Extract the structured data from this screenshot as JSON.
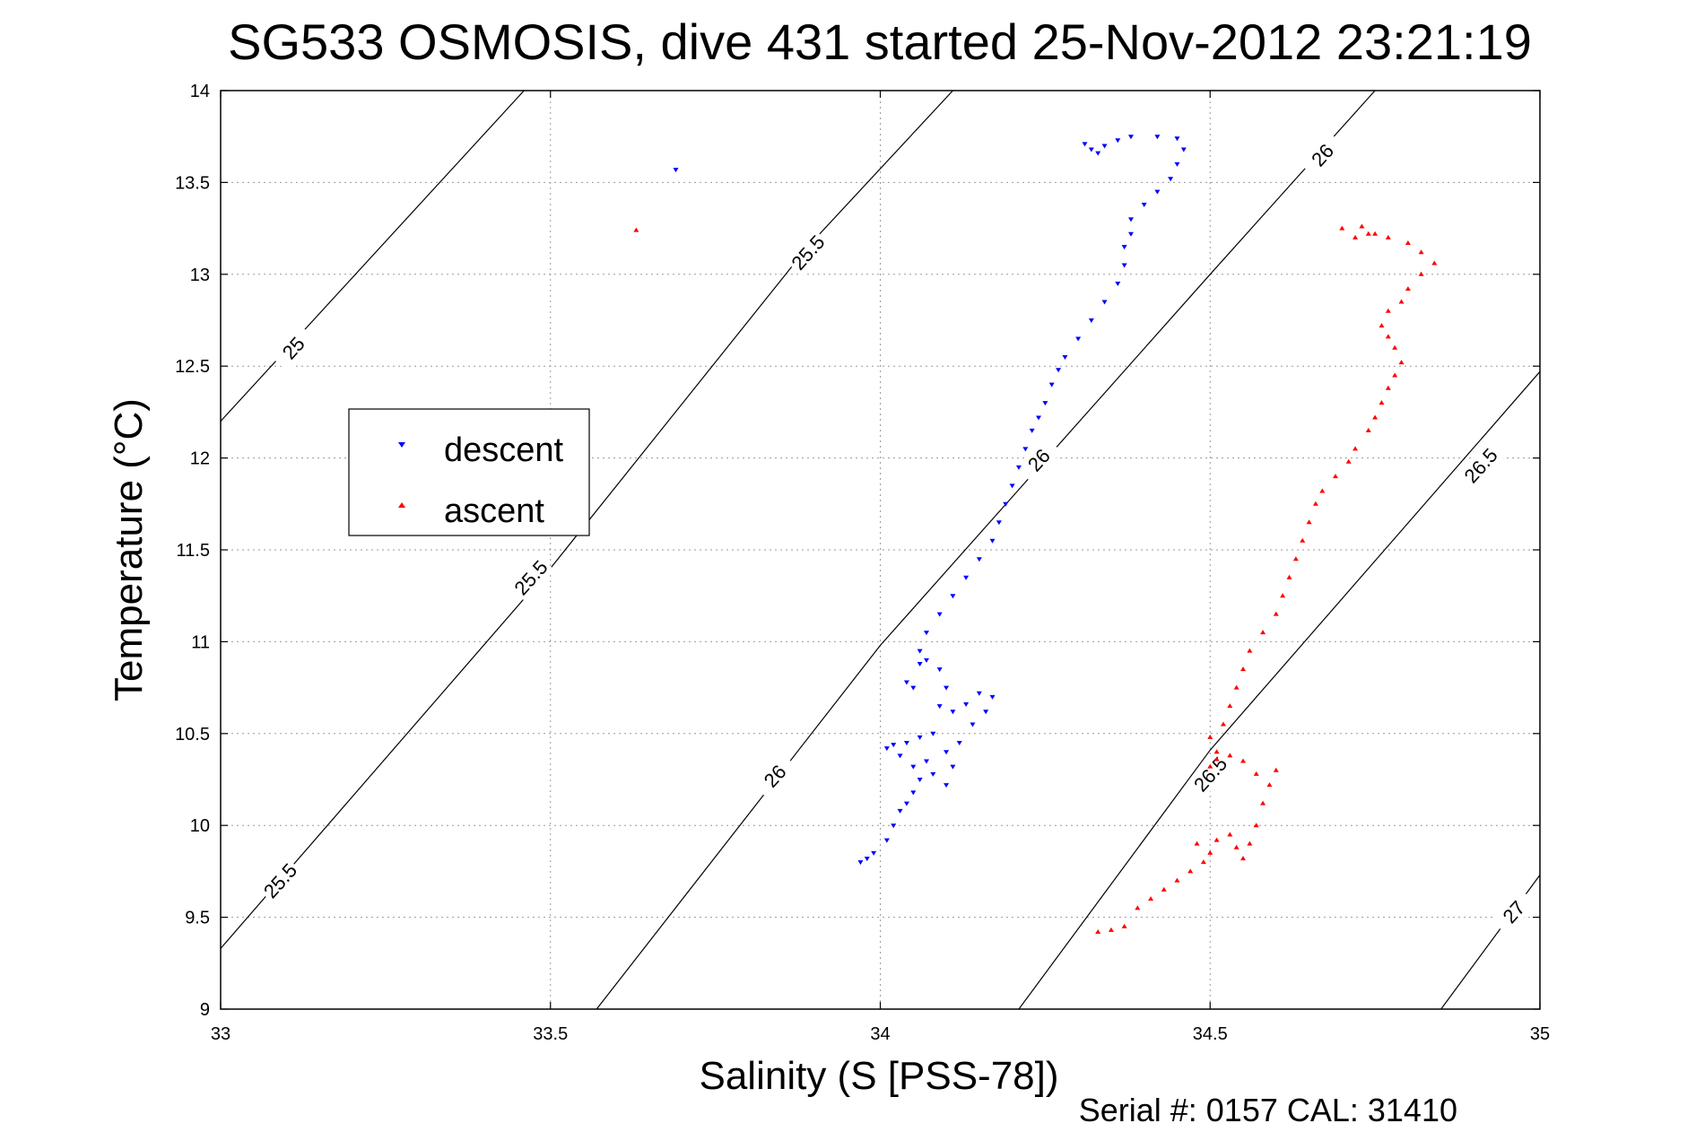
{
  "chart_data": {
    "type": "scatter",
    "title": "SG533 OSMOSIS, dive 431 started 25-Nov-2012 23:21:19",
    "xlabel": "Salinity (S [PSS-78])",
    "ylabel": "Temperature (°C)",
    "xlim": [
      33,
      35
    ],
    "ylim": [
      9,
      14
    ],
    "xticks": [
      "33",
      "33.5",
      "34",
      "34.5",
      "35"
    ],
    "yticks": [
      "9",
      "9.5",
      "10",
      "10.5",
      "11",
      "11.5",
      "12",
      "12.5",
      "13",
      "13.5",
      "14"
    ],
    "grid": true,
    "legend_position": "left-middle",
    "footer": "Serial #: 0157  CAL: 31410",
    "contours": [
      {
        "label": "25",
        "points": [
          [
            33.0,
            12.2
          ],
          [
            33.46,
            14.0
          ]
        ]
      },
      {
        "label": "25.5",
        "points": [
          [
            33.0,
            9.33
          ],
          [
            33.5,
            11.4
          ],
          [
            33.89,
            13.15
          ],
          [
            34.11,
            14.0
          ]
        ]
      },
      {
        "label": "26",
        "points": [
          [
            33.57,
            9.0
          ],
          [
            34.0,
            10.98
          ],
          [
            34.5,
            13.0
          ],
          [
            34.75,
            14.0
          ]
        ]
      },
      {
        "label": "26.5",
        "points": [
          [
            34.21,
            9.0
          ],
          [
            34.5,
            10.41
          ],
          [
            35.0,
            12.47
          ]
        ]
      },
      {
        "label": "27",
        "points": [
          [
            34.85,
            9.0
          ],
          [
            35.0,
            9.73
          ]
        ]
      }
    ],
    "contour_labels": [
      {
        "text": "25",
        "x": 33.11,
        "y": 12.6,
        "angle": -48
      },
      {
        "text": "25.5",
        "x": 33.09,
        "y": 9.7,
        "angle": -48
      },
      {
        "text": "25.5",
        "x": 33.47,
        "y": 11.35,
        "angle": -48
      },
      {
        "text": "25.5",
        "x": 33.89,
        "y": 13.12,
        "angle": -48
      },
      {
        "text": "26",
        "x": 33.84,
        "y": 10.27,
        "angle": -48
      },
      {
        "text": "26",
        "x": 34.24,
        "y": 11.99,
        "angle": -48
      },
      {
        "text": "26",
        "x": 34.67,
        "y": 13.65,
        "angle": -48
      },
      {
        "text": "26.5",
        "x": 34.5,
        "y": 10.28,
        "angle": -48
      },
      {
        "text": "26.5",
        "x": 34.91,
        "y": 11.96,
        "angle": -48
      },
      {
        "text": "27",
        "x": 34.96,
        "y": 9.53,
        "angle": -48
      }
    ],
    "series": [
      {
        "name": "descent",
        "color": "#0000ff",
        "marker": "triangle-down",
        "points": [
          [
            33.97,
            9.8
          ],
          [
            33.98,
            9.82
          ],
          [
            33.99,
            9.85
          ],
          [
            34.01,
            9.92
          ],
          [
            34.02,
            10.0
          ],
          [
            34.03,
            10.08
          ],
          [
            34.04,
            10.12
          ],
          [
            34.05,
            10.18
          ],
          [
            34.06,
            10.25
          ],
          [
            34.05,
            10.32
          ],
          [
            34.03,
            10.38
          ],
          [
            34.01,
            10.42
          ],
          [
            34.02,
            10.44
          ],
          [
            34.04,
            10.45
          ],
          [
            34.06,
            10.48
          ],
          [
            34.08,
            10.5
          ],
          [
            34.07,
            10.35
          ],
          [
            34.08,
            10.28
          ],
          [
            34.1,
            10.22
          ],
          [
            34.11,
            10.32
          ],
          [
            34.1,
            10.4
          ],
          [
            34.12,
            10.45
          ],
          [
            34.14,
            10.55
          ],
          [
            34.16,
            10.62
          ],
          [
            34.17,
            10.7
          ],
          [
            34.15,
            10.72
          ],
          [
            34.13,
            10.66
          ],
          [
            34.11,
            10.62
          ],
          [
            34.09,
            10.65
          ],
          [
            34.1,
            10.75
          ],
          [
            34.09,
            10.85
          ],
          [
            34.07,
            10.9
          ],
          [
            34.06,
            10.88
          ],
          [
            34.05,
            10.75
          ],
          [
            34.04,
            10.78
          ],
          [
            34.06,
            10.95
          ],
          [
            34.07,
            11.05
          ],
          [
            34.09,
            11.15
          ],
          [
            34.11,
            11.25
          ],
          [
            34.13,
            11.35
          ],
          [
            34.15,
            11.45
          ],
          [
            34.17,
            11.55
          ],
          [
            34.18,
            11.65
          ],
          [
            34.19,
            11.75
          ],
          [
            34.2,
            11.85
          ],
          [
            34.21,
            11.95
          ],
          [
            34.22,
            12.05
          ],
          [
            34.23,
            12.15
          ],
          [
            34.24,
            12.22
          ],
          [
            34.25,
            12.3
          ],
          [
            34.26,
            12.4
          ],
          [
            34.27,
            12.48
          ],
          [
            34.28,
            12.55
          ],
          [
            34.3,
            12.65
          ],
          [
            34.32,
            12.75
          ],
          [
            34.34,
            12.85
          ],
          [
            34.36,
            12.95
          ],
          [
            34.37,
            13.05
          ],
          [
            34.37,
            13.15
          ],
          [
            34.38,
            13.22
          ],
          [
            34.38,
            13.3
          ],
          [
            34.4,
            13.38
          ],
          [
            34.42,
            13.45
          ],
          [
            34.44,
            13.52
          ],
          [
            34.45,
            13.6
          ],
          [
            34.46,
            13.68
          ],
          [
            34.45,
            13.74
          ],
          [
            34.42,
            13.75
          ],
          [
            34.38,
            13.75
          ],
          [
            34.36,
            13.73
          ],
          [
            34.34,
            13.7
          ],
          [
            34.33,
            13.66
          ],
          [
            34.32,
            13.68
          ],
          [
            34.31,
            13.71
          ],
          [
            33.69,
            13.57
          ]
        ]
      },
      {
        "name": "ascent",
        "color": "#ff0000",
        "marker": "triangle-up",
        "points": [
          [
            34.33,
            9.42
          ],
          [
            34.35,
            9.43
          ],
          [
            34.37,
            9.45
          ],
          [
            34.39,
            9.55
          ],
          [
            34.41,
            9.6
          ],
          [
            34.43,
            9.65
          ],
          [
            34.45,
            9.7
          ],
          [
            34.47,
            9.75
          ],
          [
            34.49,
            9.8
          ],
          [
            34.5,
            9.85
          ],
          [
            34.48,
            9.9
          ],
          [
            34.51,
            9.92
          ],
          [
            34.53,
            9.95
          ],
          [
            34.54,
            9.88
          ],
          [
            34.55,
            9.82
          ],
          [
            34.56,
            9.9
          ],
          [
            34.57,
            10.0
          ],
          [
            34.58,
            10.12
          ],
          [
            34.59,
            10.22
          ],
          [
            34.6,
            10.3
          ],
          [
            34.57,
            10.28
          ],
          [
            34.55,
            10.35
          ],
          [
            34.53,
            10.38
          ],
          [
            34.51,
            10.36
          ],
          [
            34.5,
            10.32
          ],
          [
            34.51,
            10.4
          ],
          [
            34.5,
            10.48
          ],
          [
            34.52,
            10.55
          ],
          [
            34.53,
            10.65
          ],
          [
            34.54,
            10.75
          ],
          [
            34.55,
            10.85
          ],
          [
            34.56,
            10.95
          ],
          [
            34.58,
            11.05
          ],
          [
            34.6,
            11.15
          ],
          [
            34.61,
            11.25
          ],
          [
            34.62,
            11.35
          ],
          [
            34.63,
            11.45
          ],
          [
            34.64,
            11.55
          ],
          [
            34.65,
            11.65
          ],
          [
            34.66,
            11.75
          ],
          [
            34.67,
            11.82
          ],
          [
            34.69,
            11.9
          ],
          [
            34.71,
            11.98
          ],
          [
            34.72,
            12.05
          ],
          [
            34.74,
            12.15
          ],
          [
            34.75,
            12.22
          ],
          [
            34.76,
            12.3
          ],
          [
            34.77,
            12.38
          ],
          [
            34.78,
            12.45
          ],
          [
            34.79,
            12.52
          ],
          [
            34.78,
            12.6
          ],
          [
            34.77,
            12.66
          ],
          [
            34.76,
            12.72
          ],
          [
            34.77,
            12.8
          ],
          [
            34.79,
            12.85
          ],
          [
            34.8,
            12.92
          ],
          [
            34.82,
            13.0
          ],
          [
            34.84,
            13.06
          ],
          [
            34.82,
            13.12
          ],
          [
            34.8,
            13.17
          ],
          [
            34.77,
            13.2
          ],
          [
            34.74,
            13.22
          ],
          [
            34.72,
            13.2
          ],
          [
            34.7,
            13.25
          ],
          [
            34.73,
            13.26
          ],
          [
            34.75,
            13.22
          ],
          [
            33.63,
            13.24
          ]
        ]
      }
    ]
  }
}
